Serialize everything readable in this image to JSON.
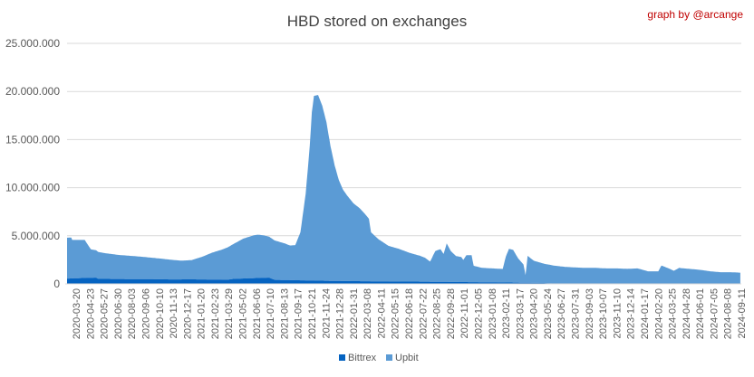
{
  "chart_data": {
    "type": "area",
    "stacked": true,
    "title": "HBD stored on exchanges",
    "credit": "graph by @arcange",
    "ylim": [
      0,
      25000000
    ],
    "y_ticks": [
      "0",
      "5.000.000",
      "10.000.000",
      "15.000.000",
      "20.000.000",
      "25.000.000"
    ],
    "y_tick_values": [
      0,
      5000000,
      10000000,
      15000000,
      20000000,
      25000000
    ],
    "grid": true,
    "legend_position": "bottom",
    "x_ticks": [
      "2020-03-20",
      "2020-04-23",
      "2020-05-27",
      "2020-06-30",
      "2020-08-03",
      "2020-09-06",
      "2020-10-10",
      "2020-11-13",
      "2020-12-17",
      "2021-01-20",
      "2021-02-23",
      "2021-03-29",
      "2021-05-02",
      "2021-06-06",
      "2021-07-10",
      "2021-08-13",
      "2021-09-17",
      "2021-10-21",
      "2021-11-24",
      "2021-12-28",
      "2022-01-31",
      "2022-03-08",
      "2022-04-11",
      "2022-05-15",
      "2022-06-18",
      "2022-07-22",
      "2022-08-25",
      "2022-09-28",
      "2022-11-01",
      "2022-12-05",
      "2023-01-08",
      "2023-02-11",
      "2023-03-17",
      "2023-04-20",
      "2023-05-24",
      "2023-06-27",
      "2023-07-31",
      "2023-09-03",
      "2023-10-07",
      "2023-11-10",
      "2023-12-14",
      "2024-01-17",
      "2024-02-20",
      "2024-03-25",
      "2024-04-28",
      "2024-06-01",
      "2024-07-05",
      "2024-08-08",
      "2024-09-11"
    ],
    "series": [
      {
        "name": "Bittrex",
        "color": "#0563c1",
        "points": [
          [
            0,
            550000
          ],
          [
            1.7,
            620000
          ],
          [
            2.8,
            650000
          ],
          [
            3,
            520000
          ],
          [
            6,
            500000
          ],
          [
            9,
            480000
          ],
          [
            10,
            460000
          ],
          [
            12,
            470000
          ],
          [
            14,
            450000
          ],
          [
            15.5,
            430000
          ],
          [
            16,
            520000
          ],
          [
            17,
            560000
          ],
          [
            18.5,
            620000
          ],
          [
            19.5,
            650000
          ],
          [
            20,
            420000
          ],
          [
            22,
            380000
          ],
          [
            24,
            340000
          ],
          [
            26,
            300000
          ],
          [
            28,
            280000
          ],
          [
            30,
            260000
          ],
          [
            32,
            240000
          ],
          [
            34,
            230000
          ],
          [
            36,
            210000
          ],
          [
            38,
            190000
          ],
          [
            40,
            170000
          ],
          [
            42,
            150000
          ],
          [
            44,
            120000
          ],
          [
            46,
            90000
          ],
          [
            47,
            40000
          ],
          [
            48,
            20000
          ],
          [
            48.8,
            10000
          ]
        ]
      },
      {
        "name": "Upbit",
        "color": "#5b9bd5",
        "points": [
          [
            0,
            4250000
          ],
          [
            0.4,
            4250000
          ],
          [
            0.5,
            4000000
          ],
          [
            1.7,
            3950000
          ],
          [
            2.3,
            2950000
          ],
          [
            3.5,
            2700000
          ],
          [
            5,
            2500000
          ],
          [
            7,
            2350000
          ],
          [
            9,
            2150000
          ],
          [
            10,
            2050000
          ],
          [
            11,
            1950000
          ],
          [
            12,
            2000000
          ],
          [
            13,
            2350000
          ],
          [
            14,
            2800000
          ],
          [
            15,
            3150000
          ],
          [
            16,
            3600000
          ],
          [
            17,
            4150000
          ],
          [
            18,
            4450000
          ],
          [
            18.4,
            4500000
          ],
          [
            19,
            4400000
          ],
          [
            20,
            4100000
          ],
          [
            21,
            3800000
          ],
          [
            21.5,
            3600000
          ],
          [
            22,
            3650000
          ],
          [
            22.5,
            5000000
          ],
          [
            23,
            9000000
          ],
          [
            23.4,
            14000000
          ],
          [
            23.6,
            17500000
          ],
          [
            23.8,
            19200000
          ],
          [
            24.2,
            19300000
          ],
          [
            24.6,
            18200000
          ],
          [
            25,
            16500000
          ],
          [
            25.4,
            14000000
          ],
          [
            25.8,
            12000000
          ],
          [
            26.2,
            10500000
          ],
          [
            26.6,
            9500000
          ],
          [
            27,
            8900000
          ],
          [
            27.6,
            8100000
          ],
          [
            28.2,
            7600000
          ],
          [
            28.8,
            6900000
          ],
          [
            29.1,
            6500000
          ],
          [
            29.3,
            5100000
          ],
          [
            30,
            4400000
          ],
          [
            31,
            3700000
          ],
          [
            32,
            3400000
          ],
          [
            33,
            3000000
          ],
          [
            34,
            2700000
          ],
          [
            34.5,
            2500000
          ],
          [
            35,
            2100000
          ],
          [
            35.5,
            3200000
          ],
          [
            36,
            3400000
          ],
          [
            36.3,
            2900000
          ],
          [
            36.6,
            4000000
          ],
          [
            37,
            3200000
          ],
          [
            37.5,
            2700000
          ],
          [
            38,
            2600000
          ],
          [
            38.2,
            2300000
          ],
          [
            38.5,
            2800000
          ],
          [
            39,
            2800000
          ],
          [
            39.2,
            1700000
          ],
          [
            40,
            1500000
          ],
          [
            41,
            1450000
          ],
          [
            42,
            1400000
          ],
          [
            42.3,
            2700000
          ],
          [
            42.6,
            3500000
          ],
          [
            43,
            3400000
          ],
          [
            43.5,
            2500000
          ],
          [
            44,
            1900000
          ],
          [
            44.2,
            800000
          ],
          [
            44.4,
            2800000
          ],
          [
            45,
            2300000
          ],
          [
            46,
            2000000
          ],
          [
            47,
            1850000
          ],
          [
            48,
            1750000
          ],
          [
            49,
            1700000
          ],
          [
            50,
            1650000
          ],
          [
            51,
            1650000
          ],
          [
            52,
            1600000
          ],
          [
            53,
            1600000
          ],
          [
            54,
            1550000
          ],
          [
            55,
            1600000
          ],
          [
            56,
            1300000
          ],
          [
            57,
            1300000
          ],
          [
            57.3,
            1900000
          ],
          [
            58,
            1600000
          ],
          [
            58.5,
            1350000
          ],
          [
            59,
            1650000
          ],
          [
            60,
            1550000
          ],
          [
            61,
            1450000
          ],
          [
            62,
            1300000
          ],
          [
            63,
            1200000
          ],
          [
            64,
            1200000
          ],
          [
            65,
            1150000
          ]
        ]
      }
    ]
  }
}
